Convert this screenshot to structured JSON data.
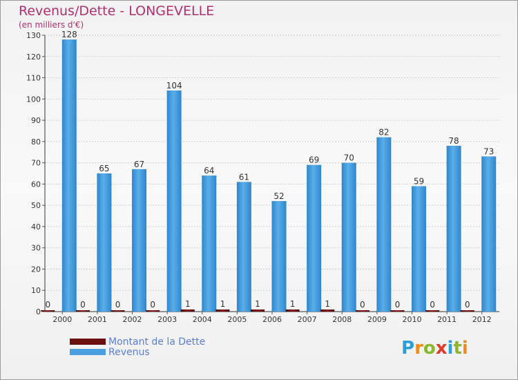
{
  "header": {
    "title": "Revenus/Dette - LONGEVELLE",
    "subtitle": "(en milliers d'€)"
  },
  "legend": {
    "dette_label": "Montant de la Dette",
    "revenus_label": "Revenus"
  },
  "logo": {
    "text": "Proxiti",
    "letters": [
      "P",
      "r",
      "o",
      "x",
      "i",
      "t",
      "i"
    ]
  },
  "colors": {
    "revenus": "#4a9fe0",
    "dette": "#6b0f0f",
    "title": "#b0306e",
    "legend_text": "#5a7ed8",
    "logo_letters": [
      "#2b9fd8",
      "#f08a1c",
      "#8ab82a",
      "#e03a2a",
      "#2b9fd8",
      "#8ab82a",
      "#f08a1c"
    ]
  },
  "chart_data": {
    "type": "bar",
    "title": "Revenus/Dette - LONGEVELLE",
    "ylabel": "(en milliers d'€)",
    "xlabel": "",
    "ylim": [
      0,
      130
    ],
    "yticks": [
      0,
      10,
      20,
      30,
      40,
      50,
      60,
      70,
      80,
      90,
      100,
      110,
      120,
      130
    ],
    "grid": true,
    "legend_position": "bottom-left",
    "categories": [
      "2000",
      "2001",
      "2002",
      "2003",
      "2004",
      "2005",
      "2006",
      "2007",
      "2008",
      "2009",
      "2010",
      "2011",
      "2012"
    ],
    "series": [
      {
        "name": "Montant de la Dette",
        "values": [
          0,
          0,
          0,
          0,
          1,
          1,
          1,
          1,
          1,
          0,
          0,
          0,
          0
        ]
      },
      {
        "name": "Revenus",
        "values": [
          128,
          65,
          67,
          104,
          64,
          61,
          52,
          69,
          70,
          82,
          59,
          78,
          73
        ]
      }
    ]
  }
}
